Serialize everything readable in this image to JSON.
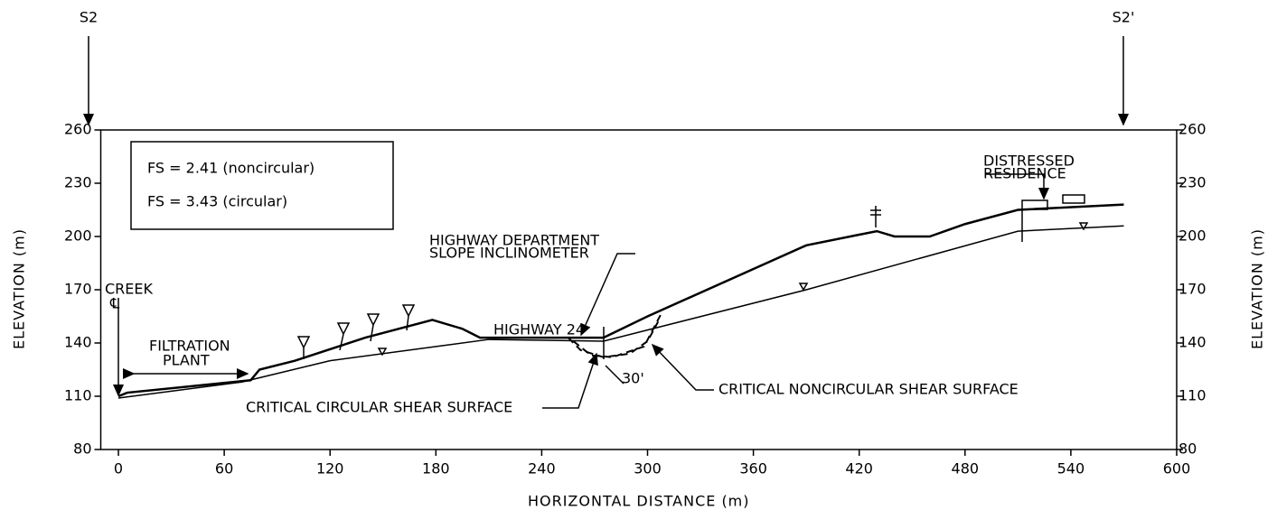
{
  "chart_data": {
    "type": "line",
    "x_label": "HORIZONTAL DISTANCE (m)",
    "y_label": "ELEVATION (m)",
    "y2_label": "ELEVATION (m)",
    "xlim": [
      -10,
      600
    ],
    "xticks": [
      0,
      60,
      120,
      180,
      240,
      300,
      360,
      420,
      480,
      540,
      600
    ],
    "ylim": [
      80,
      260
    ],
    "yticks": [
      80,
      110,
      140,
      170,
      200,
      230,
      260
    ],
    "y2lim": [
      80,
      260
    ],
    "y2ticks": [
      80,
      110,
      140,
      170,
      200,
      230,
      260
    ],
    "series": [
      {
        "color": "#000000",
        "width": 2.5,
        "dash": false,
        "x": [
          0,
          5,
          75,
          80,
          100,
          140,
          178,
          195,
          205,
          275,
          300,
          390,
          420,
          430,
          440,
          460,
          480,
          510,
          570
        ],
        "values": [
          110,
          112,
          119,
          125,
          130,
          143,
          153,
          148,
          143,
          143,
          155,
          195,
          201,
          203,
          200,
          200,
          207,
          215,
          218
        ]
      },
      {
        "color": "#000000",
        "width": 1.5,
        "dash": false,
        "x": [
          0,
          70,
          120,
          210,
          275,
          390,
          510,
          570
        ],
        "values": [
          109,
          118,
          130,
          142,
          141,
          170,
          203,
          206
        ]
      },
      {
        "color": "#000000",
        "width": 2,
        "dash": true,
        "x": [
          255,
          262,
          275,
          290,
          300,
          306
        ],
        "values": [
          143,
          136,
          132,
          134,
          141,
          152
        ]
      },
      {
        "color": "#000000",
        "width": 2,
        "dash": true,
        "x": [
          258,
          268,
          280,
          298,
          308
        ],
        "values": [
          141,
          133,
          132,
          138,
          157
        ]
      }
    ],
    "markers": [
      "S2",
      "S2'"
    ],
    "annotations": [
      "FS = 2.41 (noncircular)",
      "FS = 3.43 (circular)",
      "HIGHWAY DEPARTMENT",
      "SLOPE INCLINOMETER",
      "DISTRESSED",
      "RESIDENCE",
      "CREEK",
      "℄",
      "FILTRATION",
      "PLANT",
      "HIGHWAY 24",
      "30'",
      "CRITICAL CIRCULAR SHEAR SURFACE",
      "CRITICAL NONCIRCULAR SHEAR SURFACE"
    ]
  }
}
